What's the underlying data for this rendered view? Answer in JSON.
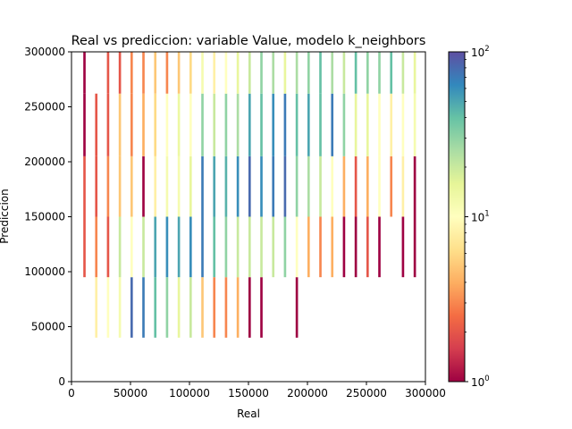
{
  "chart_data": {
    "type": "heatmap",
    "title": "Real vs prediccion: variable Value, modelo k_neighbors",
    "xlabel": "Real",
    "ylabel": "Prediccion",
    "xlim": [
      0,
      300000
    ],
    "ylim": [
      0,
      300000
    ],
    "x_ticks": [
      "0",
      "50000",
      "100000",
      "150000",
      "200000",
      "250000",
      "300000"
    ],
    "y_ticks": [
      "0",
      "50000",
      "100000",
      "150000",
      "200000",
      "250000",
      "300000"
    ],
    "colorbar": {
      "scale": "log",
      "range": [
        1,
        100
      ],
      "tick_labels": [
        {
          "base": "10",
          "exp": "0"
        },
        {
          "base": "10",
          "exp": "1"
        },
        {
          "base": "10",
          "exp": "2"
        }
      ],
      "colormap": [
        "#9e0142",
        "#d53e4f",
        "#f46d43",
        "#fdae61",
        "#fee08b",
        "#ffffbf",
        "#e6f598",
        "#abdda4",
        "#66c2a5",
        "#3288bd",
        "#5e4fa2"
      ]
    },
    "bins": {
      "x_starts": [
        10000,
        20000,
        30000,
        40000,
        50000,
        60000,
        70000,
        80000,
        90000,
        100000,
        110000,
        120000,
        130000,
        140000,
        150000,
        160000,
        170000,
        180000,
        190000,
        200000,
        210000,
        220000,
        230000,
        240000,
        250000,
        260000,
        270000,
        280000,
        290000
      ],
      "x_width": 2000,
      "y_edges": [
        40000,
        95000,
        150000,
        205000,
        262000,
        300000
      ],
      "counts": [
        [
          0,
          2,
          2,
          1,
          1
        ],
        [
          8,
          3,
          2,
          2,
          0
        ],
        [
          10,
          2,
          3,
          2,
          2
        ],
        [
          12,
          20,
          5,
          5,
          2
        ],
        [
          80,
          10,
          5,
          3,
          3
        ],
        [
          70,
          20,
          1,
          4,
          3
        ],
        [
          40,
          50,
          8,
          6,
          5
        ],
        [
          30,
          60,
          12,
          10,
          3
        ],
        [
          15,
          50,
          12,
          14,
          5
        ],
        [
          20,
          60,
          15,
          10,
          6
        ],
        [
          5,
          70,
          70,
          30,
          12
        ],
        [
          3,
          40,
          50,
          20,
          8
        ],
        [
          3,
          30,
          45,
          30,
          10
        ],
        [
          4,
          20,
          60,
          25,
          15
        ],
        [
          1,
          20,
          80,
          50,
          20
        ],
        [
          1,
          20,
          60,
          40,
          30
        ],
        [
          0,
          20,
          70,
          60,
          25
        ],
        [
          0,
          30,
          80,
          70,
          15
        ],
        [
          1,
          10,
          30,
          40,
          25
        ],
        [
          0,
          4,
          25,
          50,
          30
        ],
        [
          0,
          3,
          20,
          40,
          40
        ],
        [
          0,
          4,
          10,
          70,
          25
        ],
        [
          0,
          1,
          4,
          30,
          20
        ],
        [
          0,
          1,
          2,
          15,
          40
        ],
        [
          0,
          2,
          4,
          15,
          30
        ],
        [
          0,
          1,
          10,
          10,
          30
        ],
        [
          0,
          0,
          3,
          8,
          40
        ],
        [
          0,
          1,
          8,
          10,
          20
        ],
        [
          0,
          1,
          1,
          12,
          15
        ]
      ]
    }
  }
}
